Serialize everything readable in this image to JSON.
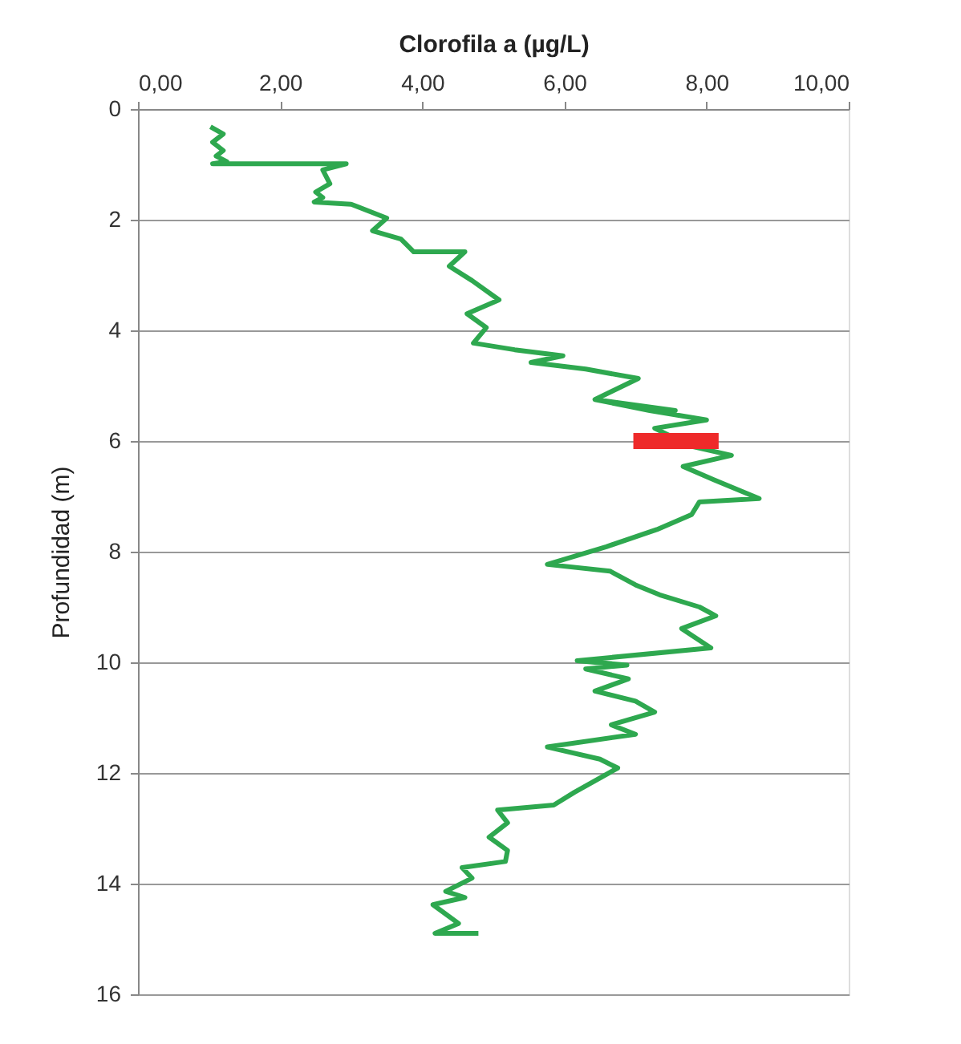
{
  "chart_data": {
    "type": "line",
    "xlabel": "Clorofila a (µg/L)",
    "ylabel": "Profundidad (m)",
    "xlim": [
      0,
      10
    ],
    "xticks": [
      {
        "value": 0,
        "label": "0,00"
      },
      {
        "value": 2,
        "label": "2,00"
      },
      {
        "value": 4,
        "label": "4,00"
      },
      {
        "value": 6,
        "label": "6,00"
      },
      {
        "value": 8,
        "label": "8,00"
      },
      {
        "value": 10,
        "label": "10,00"
      }
    ],
    "ylim": [
      16,
      0
    ],
    "yticks": [
      0,
      2,
      4,
      6,
      8,
      10,
      12,
      14,
      16
    ],
    "grid": "y",
    "marker": "none",
    "line_style": "solid",
    "series": [
      {
        "color": "#2ea84f",
        "x": [
          1.02,
          1.2,
          1.05,
          1.2,
          1.1,
          1.25,
          1.05,
          2.93,
          2.6,
          2.7,
          2.5,
          2.6,
          2.48,
          3.0,
          3.5,
          3.3,
          3.7,
          3.88,
          4.6,
          4.38,
          4.7,
          5.08,
          4.63,
          4.9,
          4.72,
          5.3,
          5.98,
          5.53,
          6.3,
          7.04,
          6.43,
          7.0,
          7.56,
          6.43,
          7.2,
          8.0,
          7.27,
          7.8,
          8.35,
          7.67,
          8.1,
          8.74,
          7.9,
          7.79,
          7.3,
          6.59,
          5.76,
          6.64,
          7.0,
          7.34,
          7.9,
          8.13,
          7.65,
          8.06,
          6.18,
          6.88,
          6.3,
          6.9,
          6.43,
          7.0,
          7.27,
          6.66,
          7.0,
          5.76,
          6.5,
          6.75,
          6.14,
          5.85,
          5.06,
          5.2,
          4.94,
          5.2,
          5.17,
          4.56,
          4.7,
          4.33,
          4.6,
          4.15,
          4.51,
          4.18,
          4.79
        ],
        "values": [
          0.32,
          0.45,
          0.6,
          0.75,
          0.85,
          0.95,
          0.99,
          0.99,
          1.1,
          1.35,
          1.5,
          1.6,
          1.68,
          1.72,
          1.97,
          2.2,
          2.35,
          2.58,
          2.58,
          2.84,
          3.1,
          3.45,
          3.7,
          3.95,
          4.23,
          4.35,
          4.46,
          4.58,
          4.7,
          4.87,
          5.25,
          5.35,
          5.45,
          5.25,
          5.45,
          5.62,
          5.77,
          6.1,
          6.26,
          6.46,
          6.7,
          7.04,
          7.1,
          7.33,
          7.6,
          7.91,
          8.23,
          8.35,
          8.6,
          8.78,
          9.0,
          9.16,
          9.39,
          9.74,
          9.97,
          10.05,
          10.12,
          10.3,
          10.52,
          10.7,
          10.9,
          11.13,
          11.3,
          11.53,
          11.75,
          11.91,
          12.35,
          12.58,
          12.67,
          12.9,
          13.16,
          13.4,
          13.6,
          13.71,
          13.9,
          14.14,
          14.25,
          14.38,
          14.72,
          14.9,
          14.9
        ]
      },
      {
        "color": "#ee2a2a",
        "x": [
          6.97,
          8.17
        ],
        "values": [
          6.0,
          6.0
        ]
      }
    ]
  }
}
